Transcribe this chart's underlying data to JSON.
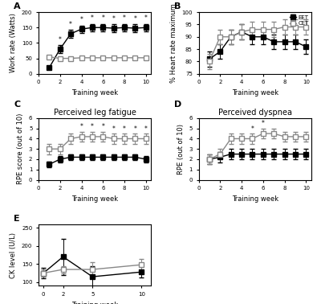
{
  "weeks_1_10": [
    1,
    2,
    3,
    4,
    5,
    6,
    7,
    8,
    9,
    10
  ],
  "weeks_ck": [
    0,
    2,
    5,
    10
  ],
  "panel_A_EET_mean": [
    20,
    80,
    130,
    145,
    150,
    150,
    148,
    150,
    148,
    150
  ],
  "panel_A_EET_err": [
    5,
    12,
    12,
    12,
    12,
    12,
    12,
    12,
    12,
    12
  ],
  "panel_A_CET_mean": [
    55,
    50,
    50,
    52,
    52,
    52,
    52,
    52,
    52,
    52
  ],
  "panel_A_CET_err": [
    5,
    5,
    5,
    5,
    5,
    5,
    5,
    5,
    5,
    5
  ],
  "panel_A_star_weeks": [
    2,
    3,
    4,
    5,
    6,
    7,
    8,
    9,
    10
  ],
  "panel_B_EET_mean": [
    81,
    84,
    90,
    92,
    90,
    90,
    88,
    88,
    88,
    86
  ],
  "panel_B_EET_err": [
    3,
    3,
    3,
    3,
    3,
    3,
    3,
    3,
    3,
    3
  ],
  "panel_B_CET_mean": [
    80,
    90,
    90,
    92,
    93,
    93,
    93,
    94,
    94,
    94
  ],
  "panel_B_CET_err": [
    3,
    3,
    3,
    3,
    3,
    3,
    3,
    3,
    3,
    3
  ],
  "panel_C_EET_mean": [
    1.5,
    2.0,
    2.2,
    2.2,
    2.2,
    2.2,
    2.2,
    2.2,
    2.2,
    2.0
  ],
  "panel_C_EET_err": [
    0.3,
    0.3,
    0.3,
    0.3,
    0.3,
    0.3,
    0.3,
    0.3,
    0.3,
    0.3
  ],
  "panel_C_CET_mean": [
    3.0,
    3.0,
    4.0,
    4.2,
    4.2,
    4.2,
    4.0,
    4.0,
    4.0,
    4.0
  ],
  "panel_C_CET_err": [
    0.5,
    0.5,
    0.5,
    0.5,
    0.5,
    0.5,
    0.5,
    0.5,
    0.5,
    0.5
  ],
  "panel_C_star_weeks": [
    4,
    5,
    6,
    7,
    8,
    9,
    10
  ],
  "panel_D_EET_mean": [
    2.0,
    2.2,
    2.5,
    2.5,
    2.5,
    2.5,
    2.5,
    2.5,
    2.5,
    2.5
  ],
  "panel_D_EET_err": [
    0.5,
    0.5,
    0.5,
    0.5,
    0.5,
    0.5,
    0.5,
    0.5,
    0.5,
    0.5
  ],
  "panel_D_CET_mean": [
    2.0,
    2.5,
    4.0,
    4.0,
    4.0,
    4.5,
    4.5,
    4.2,
    4.2,
    4.2
  ],
  "panel_D_CET_err": [
    0.5,
    0.5,
    0.5,
    0.5,
    0.5,
    0.5,
    0.5,
    0.5,
    0.5,
    0.5
  ],
  "panel_D_star_weeks": [
    5,
    6
  ],
  "panel_E_EET_mean": [
    125,
    170,
    115,
    128
  ],
  "panel_E_EET_err": [
    15,
    50,
    30,
    15
  ],
  "panel_E_CET_mean": [
    125,
    135,
    135,
    148
  ],
  "panel_E_CET_err": [
    10,
    10,
    20,
    15
  ],
  "title_C": "Perceived leg fatigue",
  "title_D": "Perceived dyspnea",
  "color_EET": "#000000",
  "color_CET": "#888888",
  "markersize": 4,
  "linewidth": 1.0,
  "capsize": 2,
  "elinewidth": 0.7
}
